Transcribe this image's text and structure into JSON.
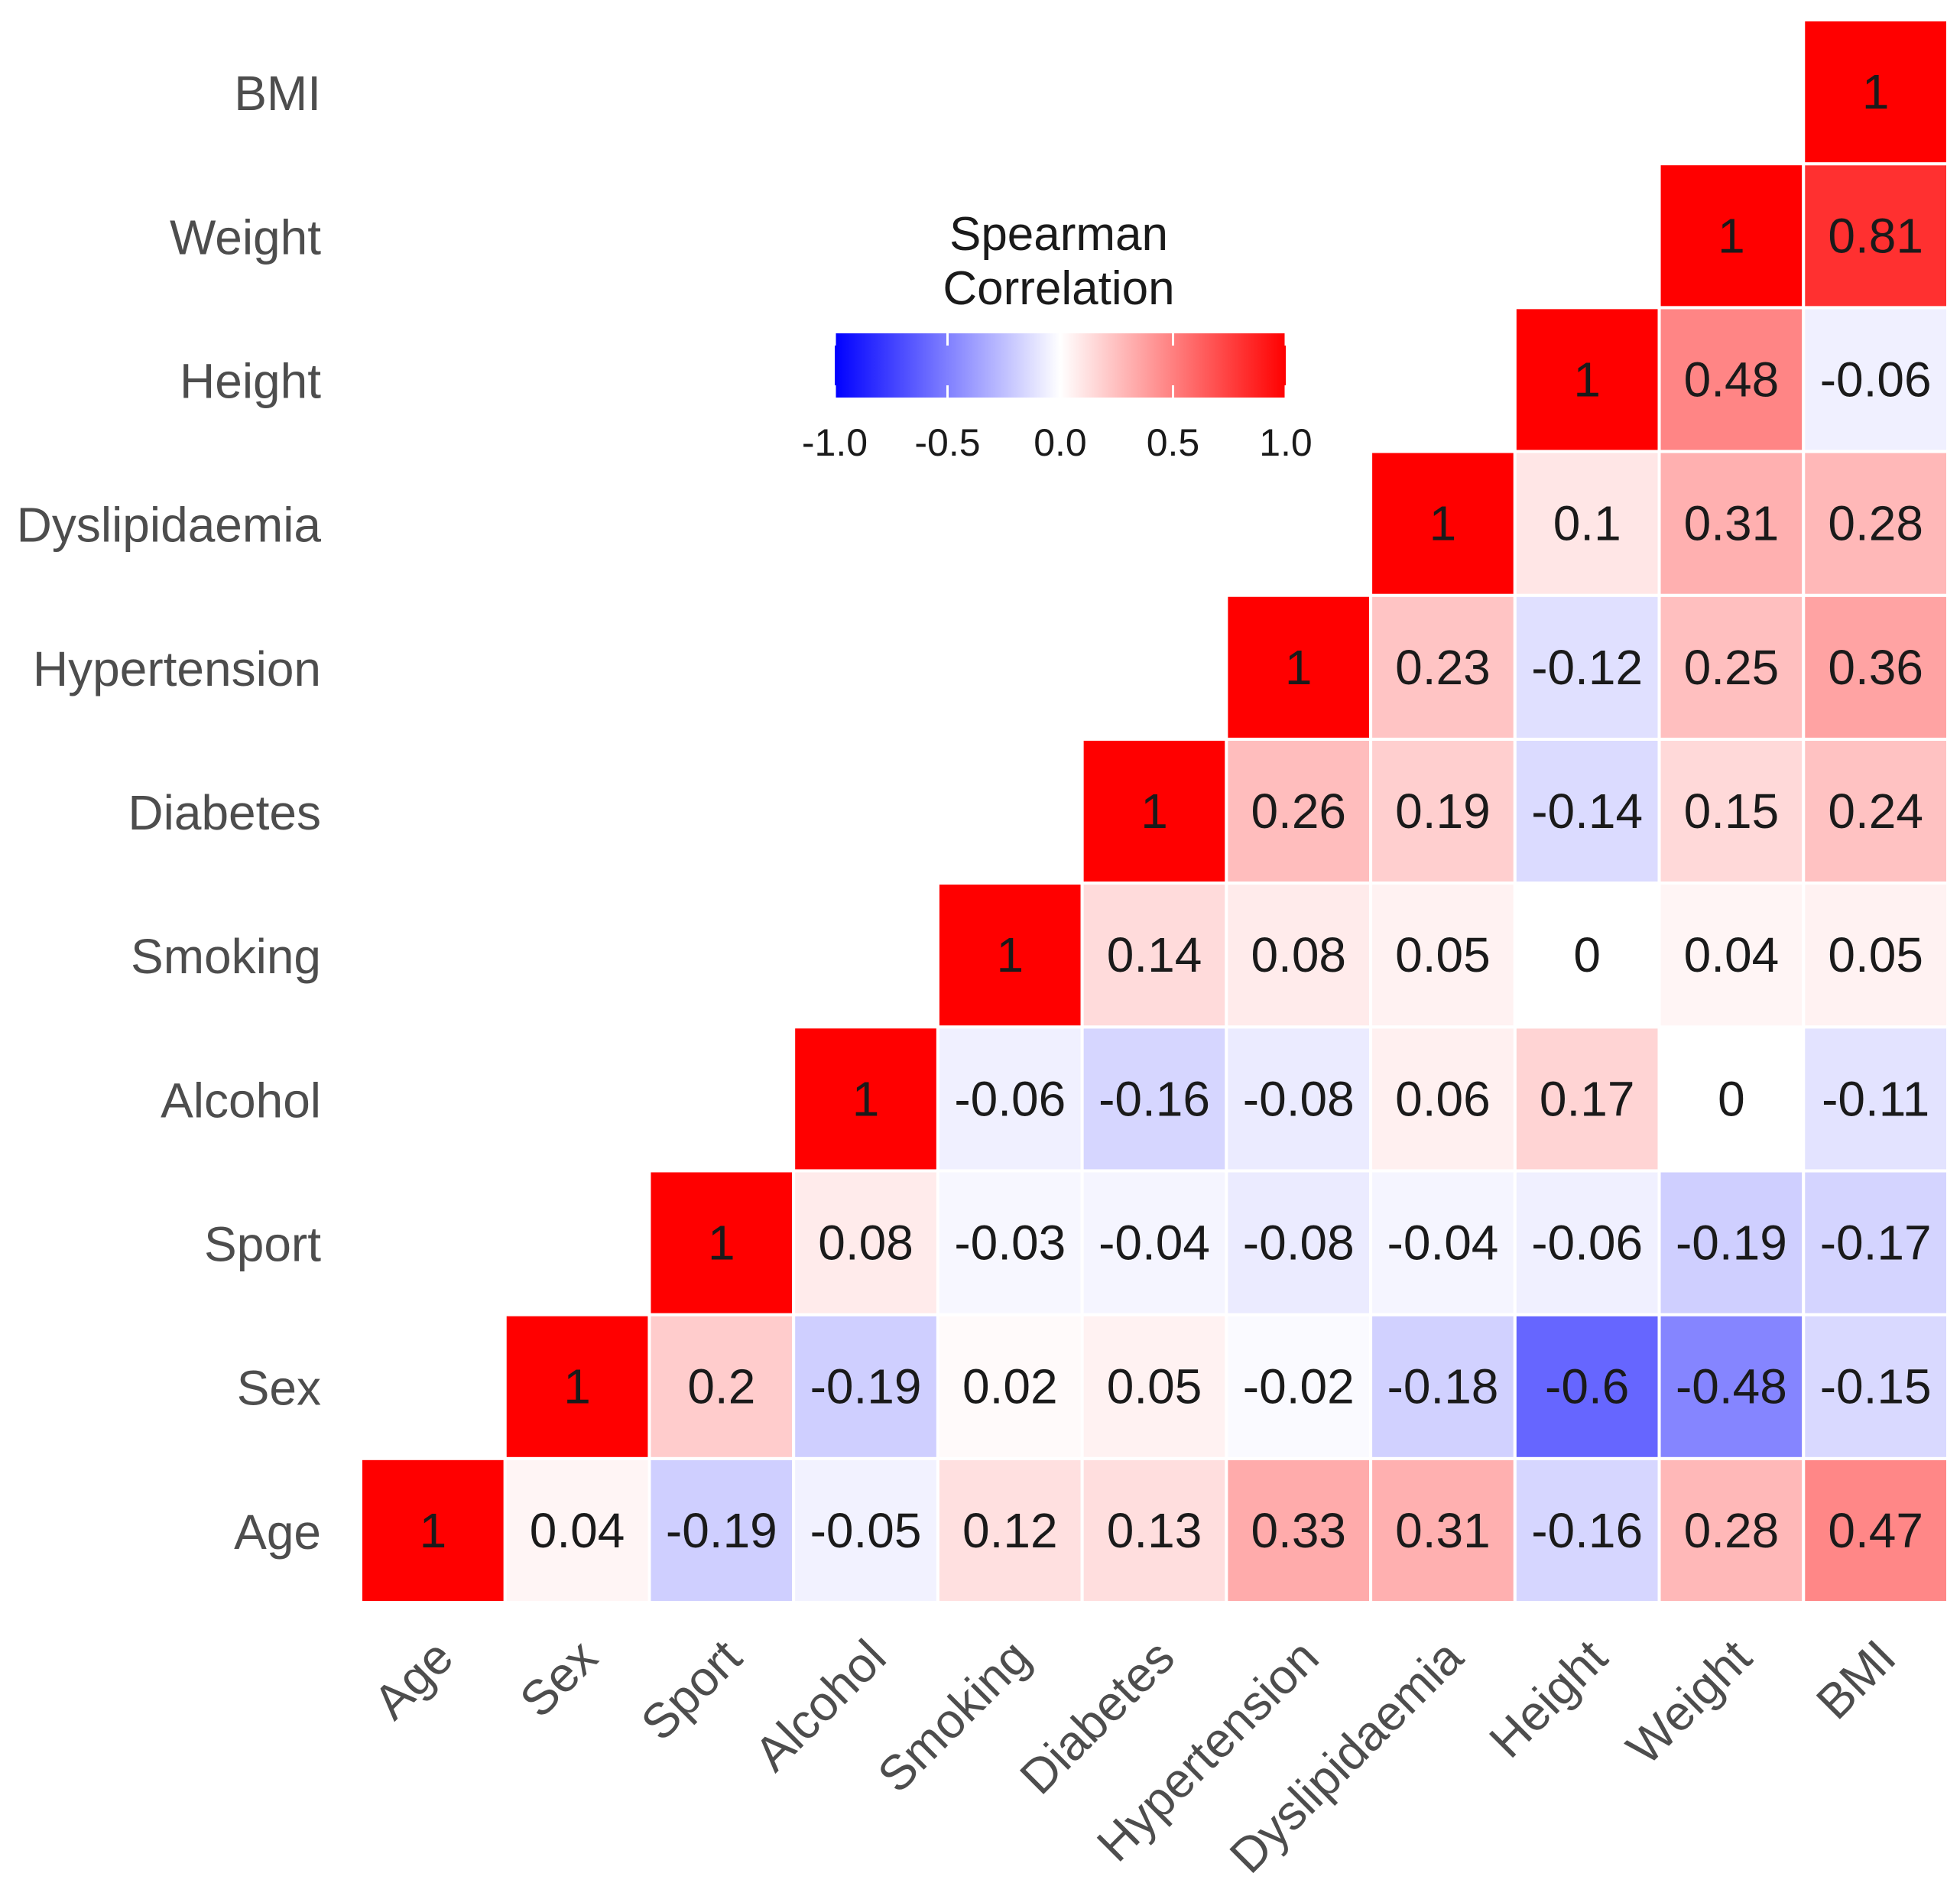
{
  "chart_data": {
    "type": "heatmap",
    "variables": [
      "Age",
      "Sex",
      "Sport",
      "Alcohol",
      "Smoking",
      "Diabetes",
      "Hypertension",
      "Dyslipidaemia",
      "Height",
      "Weight",
      "BMI"
    ],
    "cells": [
      {
        "row": "Age",
        "col": "Age",
        "value": 1,
        "label": "1"
      },
      {
        "row": "Age",
        "col": "Sex",
        "value": 0.04,
        "label": "0.04"
      },
      {
        "row": "Age",
        "col": "Sport",
        "value": -0.19,
        "label": "-0.19"
      },
      {
        "row": "Age",
        "col": "Alcohol",
        "value": -0.05,
        "label": "-0.05"
      },
      {
        "row": "Age",
        "col": "Smoking",
        "value": 0.12,
        "label": "0.12"
      },
      {
        "row": "Age",
        "col": "Diabetes",
        "value": 0.13,
        "label": "0.13"
      },
      {
        "row": "Age",
        "col": "Hypertension",
        "value": 0.33,
        "label": "0.33"
      },
      {
        "row": "Age",
        "col": "Dyslipidaemia",
        "value": 0.31,
        "label": "0.31"
      },
      {
        "row": "Age",
        "col": "Height",
        "value": -0.16,
        "label": "-0.16"
      },
      {
        "row": "Age",
        "col": "Weight",
        "value": 0.28,
        "label": "0.28"
      },
      {
        "row": "Age",
        "col": "BMI",
        "value": 0.47,
        "label": "0.47"
      },
      {
        "row": "Sex",
        "col": "Sex",
        "value": 1,
        "label": "1"
      },
      {
        "row": "Sex",
        "col": "Sport",
        "value": 0.2,
        "label": "0.2"
      },
      {
        "row": "Sex",
        "col": "Alcohol",
        "value": -0.19,
        "label": "-0.19"
      },
      {
        "row": "Sex",
        "col": "Smoking",
        "value": 0.02,
        "label": "0.02"
      },
      {
        "row": "Sex",
        "col": "Diabetes",
        "value": 0.05,
        "label": "0.05"
      },
      {
        "row": "Sex",
        "col": "Hypertension",
        "value": -0.02,
        "label": "-0.02"
      },
      {
        "row": "Sex",
        "col": "Dyslipidaemia",
        "value": -0.18,
        "label": "-0.18"
      },
      {
        "row": "Sex",
        "col": "Height",
        "value": -0.6,
        "label": "-0.6"
      },
      {
        "row": "Sex",
        "col": "Weight",
        "value": -0.48,
        "label": "-0.48"
      },
      {
        "row": "Sex",
        "col": "BMI",
        "value": -0.15,
        "label": "-0.15"
      },
      {
        "row": "Sport",
        "col": "Sport",
        "value": 1,
        "label": "1"
      },
      {
        "row": "Sport",
        "col": "Alcohol",
        "value": 0.08,
        "label": "0.08"
      },
      {
        "row": "Sport",
        "col": "Smoking",
        "value": -0.03,
        "label": "-0.03"
      },
      {
        "row": "Sport",
        "col": "Diabetes",
        "value": -0.04,
        "label": "-0.04"
      },
      {
        "row": "Sport",
        "col": "Hypertension",
        "value": -0.08,
        "label": "-0.08"
      },
      {
        "row": "Sport",
        "col": "Dyslipidaemia",
        "value": -0.04,
        "label": "-0.04"
      },
      {
        "row": "Sport",
        "col": "Height",
        "value": -0.06,
        "label": "-0.06"
      },
      {
        "row": "Sport",
        "col": "Weight",
        "value": -0.19,
        "label": "-0.19"
      },
      {
        "row": "Sport",
        "col": "BMI",
        "value": -0.17,
        "label": "-0.17"
      },
      {
        "row": "Alcohol",
        "col": "Alcohol",
        "value": 1,
        "label": "1"
      },
      {
        "row": "Alcohol",
        "col": "Smoking",
        "value": -0.06,
        "label": "-0.06"
      },
      {
        "row": "Alcohol",
        "col": "Diabetes",
        "value": -0.16,
        "label": "-0.16"
      },
      {
        "row": "Alcohol",
        "col": "Hypertension",
        "value": -0.08,
        "label": "-0.08"
      },
      {
        "row": "Alcohol",
        "col": "Dyslipidaemia",
        "value": 0.06,
        "label": "0.06"
      },
      {
        "row": "Alcohol",
        "col": "Height",
        "value": 0.17,
        "label": "0.17"
      },
      {
        "row": "Alcohol",
        "col": "Weight",
        "value": 0,
        "label": "0"
      },
      {
        "row": "Alcohol",
        "col": "BMI",
        "value": -0.11,
        "label": "-0.11"
      },
      {
        "row": "Smoking",
        "col": "Smoking",
        "value": 1,
        "label": "1"
      },
      {
        "row": "Smoking",
        "col": "Diabetes",
        "value": 0.14,
        "label": "0.14"
      },
      {
        "row": "Smoking",
        "col": "Hypertension",
        "value": 0.08,
        "label": "0.08"
      },
      {
        "row": "Smoking",
        "col": "Dyslipidaemia",
        "value": 0.05,
        "label": "0.05"
      },
      {
        "row": "Smoking",
        "col": "Height",
        "value": 0,
        "label": "0"
      },
      {
        "row": "Smoking",
        "col": "Weight",
        "value": 0.04,
        "label": "0.04"
      },
      {
        "row": "Smoking",
        "col": "BMI",
        "value": 0.05,
        "label": "0.05"
      },
      {
        "row": "Diabetes",
        "col": "Diabetes",
        "value": 1,
        "label": "1"
      },
      {
        "row": "Diabetes",
        "col": "Hypertension",
        "value": 0.26,
        "label": "0.26"
      },
      {
        "row": "Diabetes",
        "col": "Dyslipidaemia",
        "value": 0.19,
        "label": "0.19"
      },
      {
        "row": "Diabetes",
        "col": "Height",
        "value": -0.14,
        "label": "-0.14"
      },
      {
        "row": "Diabetes",
        "col": "Weight",
        "value": 0.15,
        "label": "0.15"
      },
      {
        "row": "Diabetes",
        "col": "BMI",
        "value": 0.24,
        "label": "0.24"
      },
      {
        "row": "Hypertension",
        "col": "Hypertension",
        "value": 1,
        "label": "1"
      },
      {
        "row": "Hypertension",
        "col": "Dyslipidaemia",
        "value": 0.23,
        "label": "0.23"
      },
      {
        "row": "Hypertension",
        "col": "Height",
        "value": -0.12,
        "label": "-0.12"
      },
      {
        "row": "Hypertension",
        "col": "Weight",
        "value": 0.25,
        "label": "0.25"
      },
      {
        "row": "Hypertension",
        "col": "BMI",
        "value": 0.36,
        "label": "0.36"
      },
      {
        "row": "Dyslipidaemia",
        "col": "Dyslipidaemia",
        "value": 1,
        "label": "1"
      },
      {
        "row": "Dyslipidaemia",
        "col": "Height",
        "value": 0.1,
        "label": "0.1"
      },
      {
        "row": "Dyslipidaemia",
        "col": "Weight",
        "value": 0.31,
        "label": "0.31"
      },
      {
        "row": "Dyslipidaemia",
        "col": "BMI",
        "value": 0.28,
        "label": "0.28"
      },
      {
        "row": "Height",
        "col": "Height",
        "value": 1,
        "label": "1"
      },
      {
        "row": "Height",
        "col": "Weight",
        "value": 0.48,
        "label": "0.48"
      },
      {
        "row": "Height",
        "col": "BMI",
        "value": -0.06,
        "label": "-0.06"
      },
      {
        "row": "Weight",
        "col": "Weight",
        "value": 1,
        "label": "1"
      },
      {
        "row": "Weight",
        "col": "BMI",
        "value": 0.81,
        "label": "0.81"
      },
      {
        "row": "BMI",
        "col": "BMI",
        "value": 1,
        "label": "1"
      }
    ],
    "legend": {
      "title_line1": "Spearman",
      "title_line2": "Correlation",
      "range": [
        -1.0,
        1.0
      ],
      "ticks": [
        {
          "value": -1.0,
          "label": "-1.0"
        },
        {
          "value": -0.5,
          "label": "-0.5"
        },
        {
          "value": 0.0,
          "label": "0.0"
        },
        {
          "value": 0.5,
          "label": "0.5"
        },
        {
          "value": 1.0,
          "label": "1.0"
        }
      ],
      "low_color": "#0000ff",
      "mid_color": "#ffffff",
      "high_color": "#ff0000"
    },
    "x_label_rotation_deg": -45
  }
}
